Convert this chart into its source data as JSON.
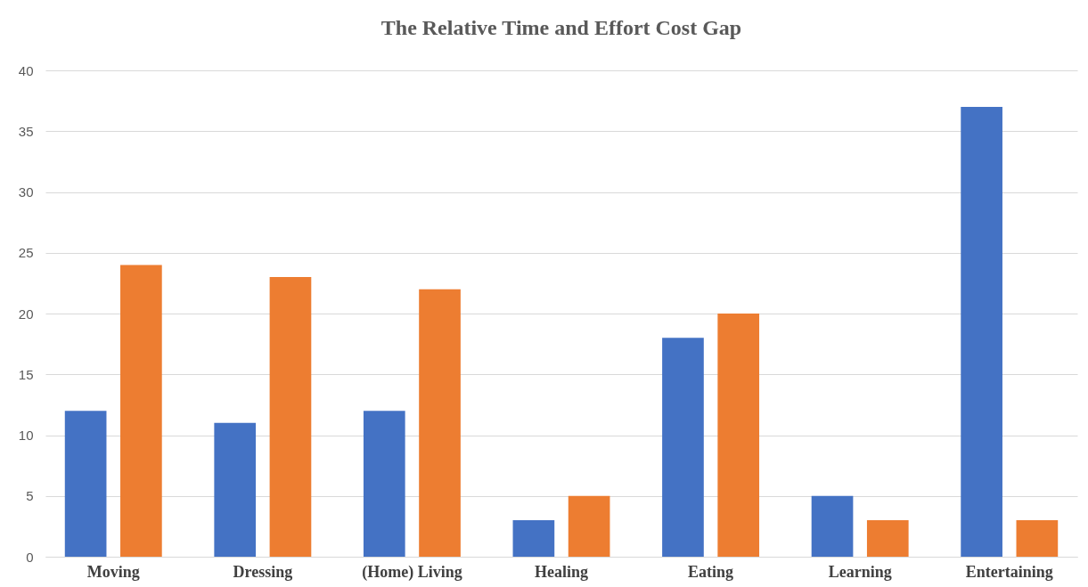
{
  "chart_data": {
    "type": "bar",
    "title": "The Relative Time and Effort Cost Gap",
    "categories": [
      "Moving",
      "Dressing",
      "(Home) Living",
      "Healing",
      "Eating",
      "Learning",
      "Entertaining"
    ],
    "series": [
      {
        "color": "#4472c4",
        "values": [
          12,
          11,
          12,
          3,
          18,
          5,
          37
        ]
      },
      {
        "color": "#ed7d31",
        "values": [
          24,
          23,
          22,
          5,
          20,
          3,
          3
        ]
      }
    ],
    "ylim": [
      0,
      40
    ],
    "yticks": [
      0,
      5,
      10,
      15,
      20,
      25,
      30,
      35,
      40
    ],
    "grid": "y",
    "legend": false
  }
}
